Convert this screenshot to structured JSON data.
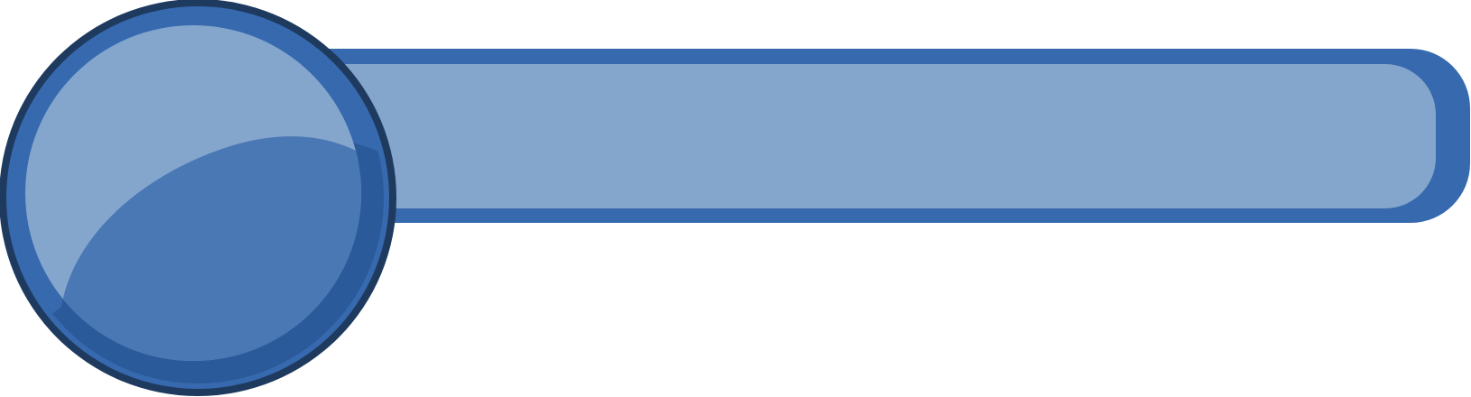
{
  "graphic": {
    "description_name": "glossy-blue-banner-button",
    "colors": {
      "bar_frame": "#3769AE",
      "bar_fill": "#84A6CD",
      "circle_outline": "#1E3A5F",
      "circle_ring": "#3769AE",
      "circle_light": "#84A6CD",
      "circle_mid": "#4A78B5",
      "circle_dark": "#2A5A9A"
    }
  }
}
